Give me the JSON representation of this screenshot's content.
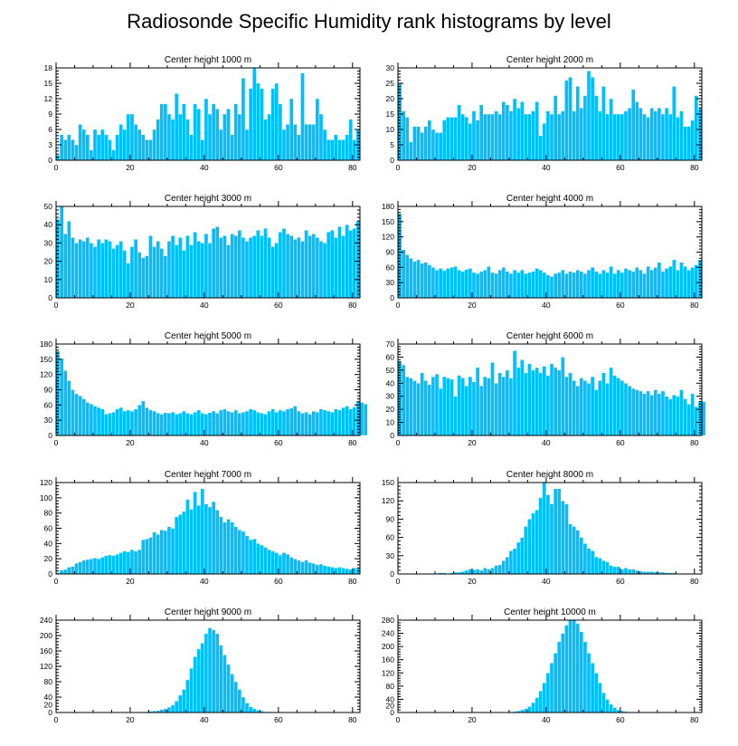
{
  "title": "Radiosonde Specific Humidity rank histograms by level",
  "colors": {
    "bar": "#00bfff",
    "bar_edge": "#ffffff",
    "axis": "#000000"
  },
  "chart_data": [
    {
      "type": "bar",
      "title": "Center height 1000 m",
      "xlim": [
        0,
        82
      ],
      "ylim": [
        0,
        18
      ],
      "xticks": [
        0,
        20,
        40,
        60,
        80
      ],
      "yticks": [
        0,
        3,
        6,
        9,
        12,
        15,
        18
      ],
      "values": [
        1,
        5,
        4,
        5,
        4,
        3,
        7,
        6,
        5,
        2,
        6,
        5,
        6,
        5,
        4,
        2,
        5,
        7,
        6,
        9,
        9,
        7,
        6,
        5,
        4,
        4,
        6,
        8,
        11,
        11,
        9,
        8,
        13,
        9,
        11,
        8,
        5,
        11,
        10,
        4,
        12,
        9,
        11,
        10,
        6,
        9,
        10,
        5,
        11,
        9,
        16,
        6,
        14,
        18,
        15,
        14,
        8,
        9,
        14,
        15,
        11,
        6,
        7,
        12,
        7,
        5,
        17,
        7,
        7,
        7,
        12,
        9,
        6,
        4,
        4,
        5,
        4,
        4,
        5,
        8,
        4,
        6
      ]
    },
    {
      "type": "bar",
      "title": "Center height 2000 m",
      "xlim": [
        0,
        82
      ],
      "ylim": [
        0,
        30
      ],
      "xticks": [
        0,
        20,
        40,
        60,
        80
      ],
      "yticks": [
        0,
        5,
        10,
        15,
        20,
        25,
        30
      ],
      "values": [
        25,
        16,
        14,
        6,
        11,
        11,
        9,
        11,
        13,
        10,
        9,
        9,
        13,
        14,
        14,
        14,
        18,
        15,
        14,
        12,
        16,
        13,
        18,
        15,
        15,
        15,
        16,
        15,
        19,
        18,
        16,
        20,
        17,
        19,
        15,
        15,
        16,
        19,
        8,
        12,
        16,
        15,
        21,
        15,
        16,
        26,
        27,
        16,
        24,
        17,
        21,
        29,
        27,
        21,
        16,
        24,
        15,
        20,
        15,
        15,
        15,
        16,
        17,
        23,
        19,
        17,
        15,
        14,
        17,
        16,
        17,
        15,
        17,
        15,
        24,
        14,
        16,
        11,
        11,
        13,
        21,
        17
      ]
    },
    {
      "type": "bar",
      "title": "Center height 3000 m",
      "xlim": [
        0,
        82
      ],
      "ylim": [
        0,
        50
      ],
      "xticks": [
        0,
        20,
        40,
        60,
        80
      ],
      "yticks": [
        0,
        10,
        20,
        30,
        40,
        50
      ],
      "values": [
        43,
        50,
        35,
        42,
        33,
        30,
        32,
        31,
        33,
        30,
        28,
        32,
        30,
        32,
        31,
        27,
        29,
        31,
        26,
        19,
        28,
        32,
        25,
        22,
        23,
        34,
        28,
        31,
        27,
        23,
        31,
        34,
        29,
        33,
        26,
        34,
        29,
        36,
        31,
        30,
        35,
        30,
        38,
        39,
        33,
        34,
        29,
        35,
        34,
        37,
        33,
        31,
        33,
        34,
        37,
        34,
        38,
        33,
        28,
        30,
        36,
        38,
        35,
        34,
        32,
        33,
        31,
        37,
        34,
        35,
        33,
        31,
        30,
        36,
        37,
        33,
        39,
        34,
        40,
        37,
        38,
        42
      ]
    },
    {
      "type": "bar",
      "title": "Center height 4000 m",
      "xlim": [
        0,
        82
      ],
      "ylim": [
        0,
        180
      ],
      "xticks": [
        0,
        20,
        40,
        60,
        80
      ],
      "yticks": [
        0,
        30,
        60,
        90,
        120,
        150,
        180
      ],
      "values": [
        166,
        95,
        85,
        78,
        72,
        75,
        68,
        70,
        65,
        60,
        55,
        58,
        54,
        58,
        60,
        62,
        55,
        52,
        56,
        58,
        50,
        48,
        52,
        55,
        62,
        50,
        48,
        55,
        60,
        52,
        48,
        55,
        50,
        55,
        48,
        50,
        52,
        58,
        55,
        50,
        45,
        42,
        48,
        50,
        55,
        48,
        52,
        50,
        55,
        52,
        48,
        55,
        60,
        52,
        48,
        55,
        50,
        62,
        48,
        55,
        50,
        58,
        55,
        52,
        60,
        55,
        48,
        62,
        55,
        60,
        70,
        52,
        58,
        62,
        75,
        55,
        70,
        62,
        55,
        60,
        65,
        75
      ]
    },
    {
      "type": "bar",
      "title": "Center height 5000 m",
      "xlim": [
        0,
        82
      ],
      "ylim": [
        0,
        180
      ],
      "xticks": [
        0,
        20,
        40,
        60,
        80
      ],
      "yticks": [
        0,
        30,
        60,
        90,
        120,
        150,
        180
      ],
      "values": [
        166,
        152,
        128,
        108,
        90,
        82,
        78,
        72,
        65,
        62,
        58,
        55,
        52,
        42,
        44,
        46,
        52,
        55,
        48,
        50,
        48,
        52,
        60,
        68,
        55,
        50,
        48,
        44,
        42,
        45,
        44,
        46,
        42,
        44,
        48,
        44,
        42,
        46,
        50,
        44,
        42,
        45,
        48,
        44,
        50,
        52,
        48,
        46,
        50,
        44,
        46,
        48,
        52,
        50,
        46,
        44,
        42,
        48,
        52,
        46,
        50,
        48,
        52,
        54,
        58,
        48,
        44,
        46,
        42,
        48,
        46,
        52,
        50,
        48,
        46,
        52,
        50,
        55,
        58,
        52,
        56,
        68,
        65,
        62
      ]
    },
    {
      "type": "bar",
      "title": "Center height 6000 m",
      "xlim": [
        0,
        82
      ],
      "ylim": [
        0,
        70
      ],
      "xticks": [
        0,
        20,
        40,
        60,
        80
      ],
      "yticks": [
        0,
        10,
        20,
        30,
        40,
        50,
        60,
        70
      ],
      "values": [
        57,
        54,
        45,
        44,
        42,
        40,
        48,
        42,
        39,
        45,
        47,
        36,
        45,
        44,
        43,
        30,
        46,
        44,
        38,
        45,
        41,
        52,
        38,
        45,
        44,
        56,
        40,
        48,
        45,
        50,
        44,
        65,
        52,
        58,
        48,
        55,
        50,
        52,
        48,
        53,
        46,
        55,
        52,
        50,
        60,
        45,
        48,
        42,
        38,
        44,
        42,
        40,
        45,
        35,
        42,
        48,
        40,
        52,
        46,
        44,
        42,
        40,
        38,
        36,
        35,
        34,
        32,
        34,
        31,
        35,
        32,
        34,
        30,
        28,
        31,
        30,
        35,
        28,
        24,
        32,
        22,
        26,
        26
      ]
    },
    {
      "type": "bar",
      "title": "Center height 7000 m",
      "xlim": [
        0,
        82
      ],
      "ylim": [
        0,
        120
      ],
      "xticks": [
        0,
        20,
        40,
        60,
        80
      ],
      "yticks": [
        0,
        20,
        40,
        60,
        80,
        100,
        120
      ],
      "values": [
        2,
        5,
        6,
        9,
        10,
        14,
        16,
        18,
        19,
        20,
        21,
        20,
        22,
        24,
        25,
        24,
        26,
        28,
        30,
        29,
        32,
        30,
        32,
        45,
        46,
        48,
        55,
        52,
        58,
        57,
        62,
        60,
        75,
        78,
        82,
        98,
        85,
        108,
        90,
        112,
        92,
        88,
        95,
        84,
        75,
        68,
        72,
        68,
        62,
        58,
        56,
        50,
        45,
        46,
        40,
        38,
        35,
        32,
        30,
        28,
        25,
        28,
        26,
        22,
        20,
        18,
        16,
        18,
        15,
        14,
        12,
        13,
        11,
        10,
        9,
        8,
        9,
        8,
        7,
        6,
        8,
        8
      ]
    },
    {
      "type": "bar",
      "title": "Center height 8000 m",
      "xlim": [
        0,
        82
      ],
      "ylim": [
        0,
        150
      ],
      "xticks": [
        0,
        20,
        40,
        60,
        80
      ],
      "yticks": [
        0,
        30,
        60,
        90,
        120,
        150
      ],
      "values": [
        0,
        0,
        0,
        0,
        0,
        0,
        0,
        1,
        1,
        0,
        1,
        2,
        2,
        1,
        2,
        3,
        3,
        4,
        6,
        8,
        7,
        8,
        6,
        10,
        8,
        10,
        14,
        15,
        22,
        28,
        38,
        42,
        52,
        60,
        78,
        90,
        100,
        105,
        125,
        150,
        130,
        115,
        140,
        140,
        120,
        115,
        82,
        78,
        72,
        60,
        50,
        42,
        38,
        28,
        26,
        22,
        20,
        14,
        12,
        12,
        8,
        10,
        8,
        8,
        6,
        5,
        4,
        4,
        4,
        3,
        3,
        3,
        2,
        2,
        2,
        1,
        1,
        1,
        1,
        0,
        1,
        1
      ]
    },
    {
      "type": "bar",
      "title": "Center height 9000 m",
      "xlim": [
        0,
        82
      ],
      "ylim": [
        0,
        240
      ],
      "xticks": [
        0,
        20,
        40,
        60,
        80
      ],
      "yticks": [
        0,
        20,
        40,
        80,
        120,
        160,
        200,
        240
      ],
      "values": [
        0,
        0,
        0,
        0,
        0,
        0,
        0,
        0,
        0,
        0,
        0,
        0,
        0,
        0,
        0,
        0,
        0,
        0,
        0,
        0,
        0,
        0,
        1,
        1,
        2,
        3,
        4,
        5,
        8,
        10,
        14,
        20,
        30,
        45,
        60,
        85,
        115,
        145,
        165,
        180,
        205,
        220,
        215,
        205,
        175,
        150,
        125,
        100,
        80,
        60,
        40,
        25,
        15,
        10,
        6,
        4,
        2,
        2,
        1,
        1,
        0,
        0,
        0,
        0,
        0,
        0,
        0,
        0,
        0,
        0,
        0,
        0,
        0,
        0,
        0,
        0,
        0,
        0,
        0,
        0,
        0,
        0
      ]
    },
    {
      "type": "bar",
      "title": "Center height 10000 m",
      "xlim": [
        0,
        82
      ],
      "ylim": [
        0,
        280
      ],
      "xticks": [
        0,
        20,
        40,
        60,
        80
      ],
      "yticks": [
        0,
        20,
        40,
        80,
        120,
        160,
        200,
        240,
        280
      ],
      "values": [
        0,
        0,
        0,
        0,
        0,
        0,
        0,
        0,
        0,
        0,
        0,
        0,
        0,
        0,
        0,
        0,
        0,
        0,
        0,
        0,
        0,
        0,
        0,
        0,
        0,
        0,
        0,
        0,
        0,
        1,
        2,
        3,
        5,
        8,
        12,
        18,
        30,
        45,
        65,
        90,
        120,
        150,
        180,
        215,
        240,
        265,
        280,
        280,
        270,
        245,
        215,
        180,
        150,
        120,
        90,
        60,
        40,
        25,
        15,
        8,
        5,
        3,
        2,
        1,
        1,
        0,
        0,
        0,
        0,
        0,
        0,
        0,
        0,
        0,
        0,
        0,
        0,
        0,
        0,
        0,
        0,
        0
      ]
    }
  ]
}
